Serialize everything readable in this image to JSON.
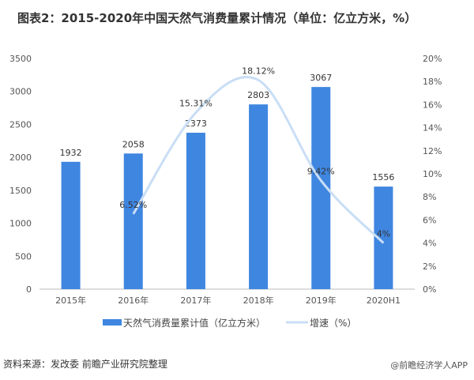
{
  "title": "图表2：2015-2020年中国天然气消费量累计情况（单位：亿立方米，%）",
  "source": "资料来源：发改委 前瞻产业研究院整理",
  "brand": "@前瞻经济学人APP",
  "chart_data": {
    "type": "bar+line",
    "categories": [
      "2015年",
      "2016年",
      "2017年",
      "2018年",
      "2019年",
      "2020H1"
    ],
    "series": [
      {
        "name": "天然气消费量累计值（亿立方米）",
        "type": "bar",
        "axis": "left",
        "color": "#3f86e0",
        "values": [
          1932,
          2058,
          2373,
          2803,
          3067,
          1556
        ],
        "labels": [
          "1932",
          "2058",
          "2373",
          "2803",
          "3067",
          "1556"
        ]
      },
      {
        "name": "增速（%）",
        "type": "line",
        "axis": "right",
        "color": "#c9def5",
        "smooth": true,
        "values": [
          null,
          6.52,
          15.31,
          18.12,
          9.42,
          4
        ],
        "labels": [
          "",
          "6.52%",
          "15.31%",
          "18.12%",
          "9.42%",
          "4%"
        ]
      }
    ],
    "left_axis": {
      "range": [
        0,
        3500
      ],
      "ticks": [
        "0",
        "500",
        "1000",
        "1500",
        "2000",
        "2500",
        "3000",
        "3500"
      ]
    },
    "right_axis": {
      "range": [
        0,
        20
      ],
      "ticks": [
        "0%",
        "2%",
        "4%",
        "6%",
        "8%",
        "10%",
        "12%",
        "14%",
        "16%",
        "18%",
        "20%"
      ]
    },
    "grid": false,
    "legend_placement": "bottom"
  }
}
